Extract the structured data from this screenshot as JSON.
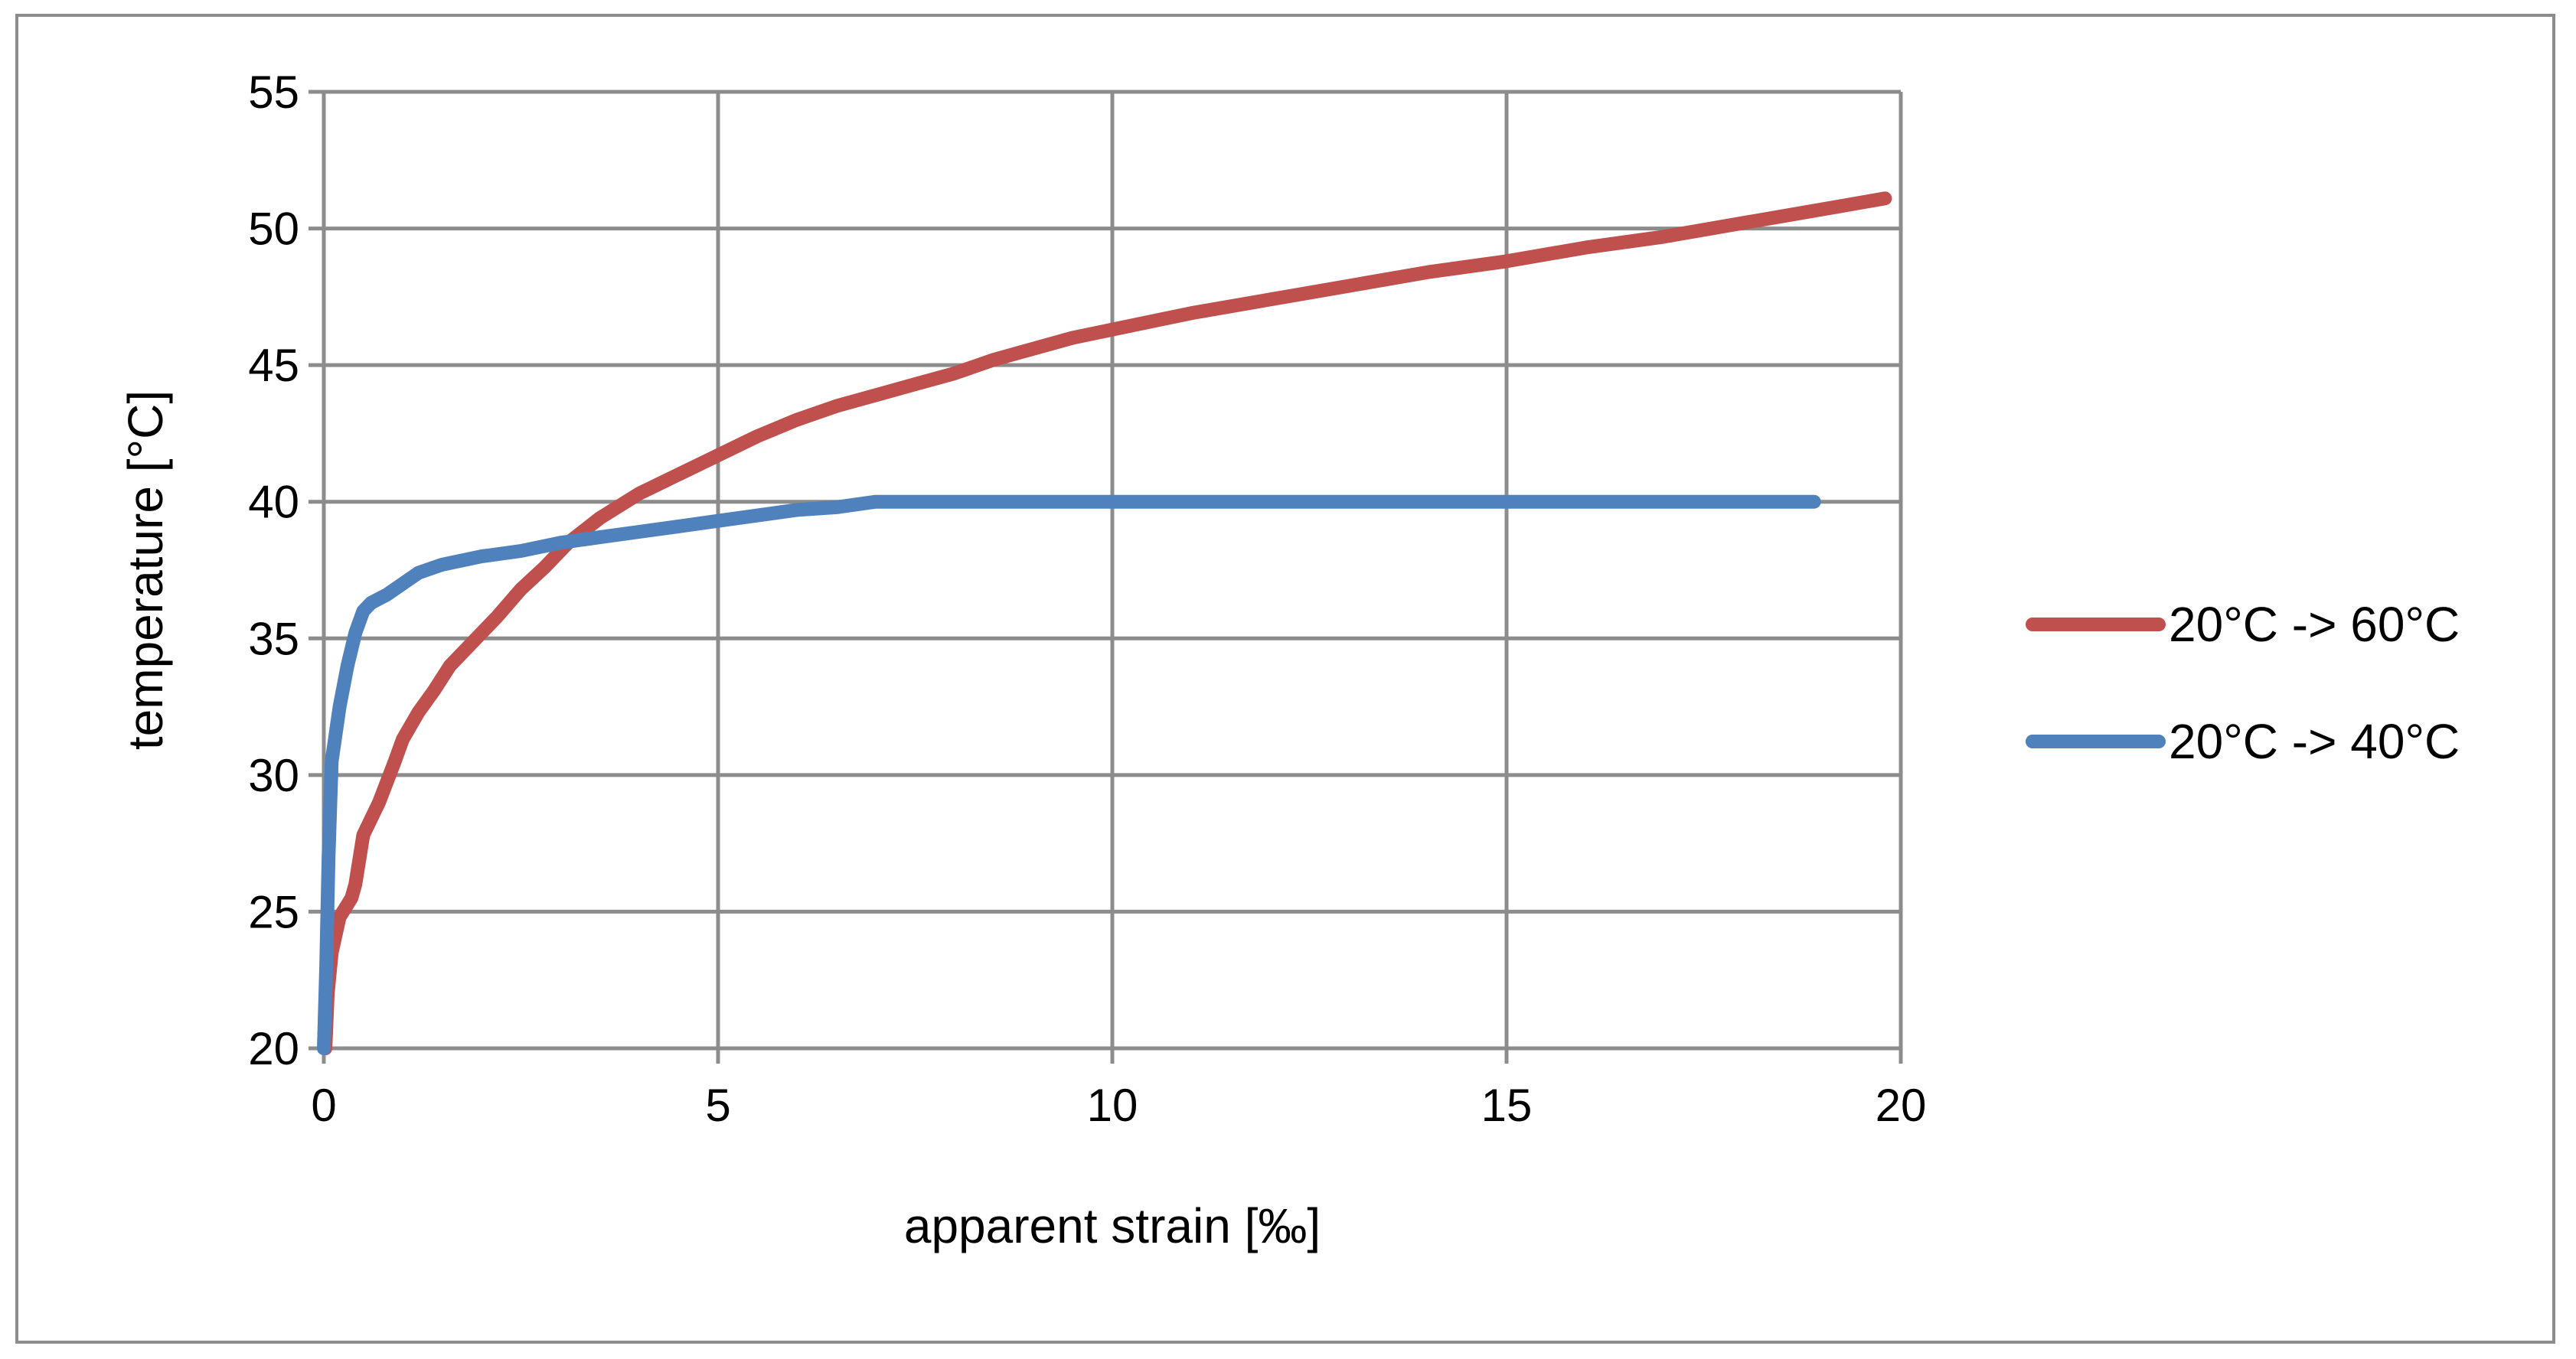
{
  "chart_data": {
    "type": "line",
    "xlabel": "apparent strain [‰]",
    "ylabel": "temperature [°C]",
    "xlim": [
      0,
      20
    ],
    "ylim": [
      20,
      55
    ],
    "x_ticks": [
      "0",
      "5",
      "10",
      "15",
      "20"
    ],
    "y_ticks": [
      "20",
      "25",
      "30",
      "35",
      "40",
      "45",
      "50",
      "55"
    ],
    "grid": true,
    "legend_position": "right",
    "series": [
      {
        "name": "20°C -> 60°C",
        "color": "#c0504d",
        "points": [
          [
            0.02,
            20
          ],
          [
            0.05,
            22
          ],
          [
            0.1,
            23.5
          ],
          [
            0.2,
            24.8
          ],
          [
            0.35,
            25.5
          ],
          [
            0.4,
            26.0
          ],
          [
            0.5,
            27.8
          ],
          [
            0.7,
            29.0
          ],
          [
            0.9,
            30.5
          ],
          [
            1.0,
            31.3
          ],
          [
            1.2,
            32.3
          ],
          [
            1.4,
            33.1
          ],
          [
            1.6,
            34.0
          ],
          [
            1.8,
            34.6
          ],
          [
            2.0,
            35.2
          ],
          [
            2.2,
            35.8
          ],
          [
            2.5,
            36.8
          ],
          [
            2.8,
            37.6
          ],
          [
            3.1,
            38.5
          ],
          [
            3.5,
            39.4
          ],
          [
            4.0,
            40.3
          ],
          [
            4.5,
            41.0
          ],
          [
            5.0,
            41.7
          ],
          [
            5.5,
            42.4
          ],
          [
            6.0,
            43.0
          ],
          [
            6.5,
            43.5
          ],
          [
            7.0,
            43.9
          ],
          [
            7.5,
            44.3
          ],
          [
            8.0,
            44.7
          ],
          [
            8.5,
            45.2
          ],
          [
            9.0,
            45.6
          ],
          [
            9.5,
            46.0
          ],
          [
            10.0,
            46.3
          ],
          [
            11.0,
            46.9
          ],
          [
            12.0,
            47.4
          ],
          [
            13.0,
            47.9
          ],
          [
            14.0,
            48.4
          ],
          [
            15.0,
            48.8
          ],
          [
            16.0,
            49.3
          ],
          [
            17.0,
            49.7
          ],
          [
            18.0,
            50.2
          ],
          [
            19.0,
            50.7
          ],
          [
            19.8,
            51.1
          ]
        ]
      },
      {
        "name": "20°C -> 40°C",
        "color": "#4f81bd",
        "points": [
          [
            0.0,
            20
          ],
          [
            0.03,
            23
          ],
          [
            0.06,
            27
          ],
          [
            0.1,
            30.5
          ],
          [
            0.2,
            32.5
          ],
          [
            0.3,
            34.0
          ],
          [
            0.4,
            35.2
          ],
          [
            0.5,
            36.0
          ],
          [
            0.6,
            36.3
          ],
          [
            0.8,
            36.6
          ],
          [
            1.0,
            37.0
          ],
          [
            1.2,
            37.4
          ],
          [
            1.5,
            37.7
          ],
          [
            2.0,
            38.0
          ],
          [
            2.5,
            38.2
          ],
          [
            3.0,
            38.5
          ],
          [
            3.5,
            38.7
          ],
          [
            4.0,
            38.9
          ],
          [
            4.5,
            39.1
          ],
          [
            5.0,
            39.3
          ],
          [
            5.5,
            39.5
          ],
          [
            6.0,
            39.7
          ],
          [
            6.5,
            39.8
          ],
          [
            7.0,
            40.0
          ],
          [
            8.0,
            40.0
          ],
          [
            10.0,
            40.0
          ],
          [
            12.0,
            40.0
          ],
          [
            14.0,
            40.0
          ],
          [
            16.0,
            40.0
          ],
          [
            18.0,
            40.0
          ],
          [
            18.9,
            40.0
          ]
        ]
      }
    ]
  }
}
